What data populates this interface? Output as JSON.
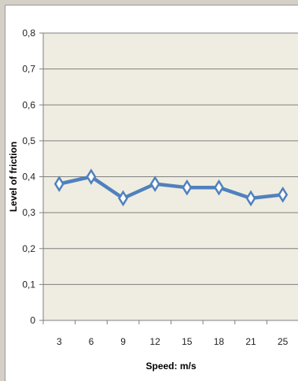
{
  "chart_data": {
    "type": "line",
    "title": "",
    "xlabel": "Speed: m/s",
    "ylabel": "Level of friction",
    "categories": [
      "3",
      "6",
      "9",
      "12",
      "15",
      "18",
      "21",
      "25"
    ],
    "series": [
      {
        "values": [
          0.38,
          0.4,
          0.34,
          0.38,
          0.37,
          0.37,
          0.34,
          0.35
        ]
      }
    ],
    "ylim": [
      0,
      0.8
    ],
    "yticks": [
      "0",
      "0,1",
      "0,2",
      "0,3",
      "0,4",
      "0,5",
      "0,6",
      "0,7",
      "0,8"
    ],
    "grid": true,
    "legend": "none",
    "colors": {
      "plot_background": "#efece1",
      "gridline": "#7f7f7f",
      "series_line": "#4f81bd",
      "marker_fill": "#ffffff"
    }
  }
}
